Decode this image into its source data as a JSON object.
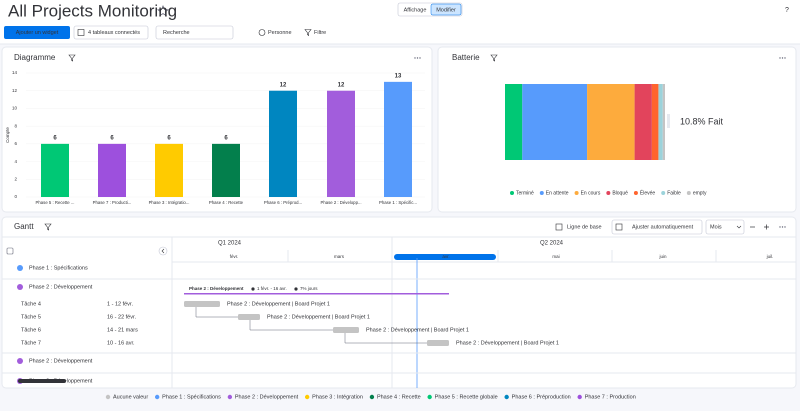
{
  "header": {
    "title": "All Projects Monitoring",
    "view_toggle": [
      "Affichage",
      "Modifier"
    ],
    "help": "?"
  },
  "toolbar": {
    "add_widget": "Ajouter un widget",
    "boards": "4 tableaux connectés",
    "search_placeholder": "Recherche",
    "person": "Personne",
    "filter": "Filtre"
  },
  "chart_widget": {
    "title": "Diagramme",
    "y_label": "Compte",
    "categories": [
      "Phase 5 : Recette ...",
      "Phase 7 : Producti...",
      "Phase 3 : Intégratio...",
      "Phase 4 : Recette",
      "Phase 6 : Préprod...",
      "Phase 2 : Développ...",
      "Phase 1 : Spécific..."
    ],
    "values": [
      6,
      6,
      6,
      6,
      12,
      12,
      13
    ],
    "colors": [
      "#00c875",
      "#9d50dd",
      "#ffcb00",
      "#037f4c",
      "#0086c0",
      "#a25ddc",
      "#579bfc"
    ],
    "ylim": [
      0,
      14
    ],
    "yticks": [
      0,
      2,
      4,
      6,
      8,
      10,
      12,
      14
    ]
  },
  "battery_widget": {
    "title": "Batterie",
    "done_label": "10.8% Fait",
    "segments": [
      {
        "name": "Terminé",
        "color": "#00c875",
        "value": 10.8
      },
      {
        "name": "En attente",
        "color": "#579bfc",
        "value": 40.5
      },
      {
        "name": "En cours",
        "color": "#fdab3d",
        "value": 29.7
      },
      {
        "name": "Bloqué",
        "color": "#e2445c",
        "value": 10.8
      },
      {
        "name": "Élevée",
        "color": "#ff642e",
        "value": 4.1
      },
      {
        "name": "Faible",
        "color": "#9cd3db",
        "value": 2.7
      },
      {
        "name": "empty",
        "color": "#c4c4c4",
        "value": 1.4
      }
    ]
  },
  "gantt": {
    "title": "Gantt",
    "baseline": "Ligne de base",
    "auto_fit": "Ajuster automatiquement",
    "scale": "Mois",
    "quarters": [
      "Q1 2024",
      "Q2 2024"
    ],
    "months": [
      "févr.",
      "mars",
      "avr.",
      "mai",
      "juin",
      "juil."
    ],
    "groups": [
      {
        "label": "Phase 1 : Spécifications",
        "color": "#579bfc"
      },
      {
        "label": "Phase 2 : Développement",
        "color": "#a25ddc"
      },
      {
        "label": "Phase 2 : Développement",
        "color": "#a25ddc"
      },
      {
        "label": "Phase 2 : Développement",
        "color": "#a25ddc"
      }
    ],
    "summary": {
      "label": "Phase 2 : Développement",
      "dates": "1 févr. - 16 avr.",
      "progress": "7% jours"
    },
    "tasks": [
      {
        "label": "Tâche 4",
        "dates": "1 - 12 févr.",
        "bar": "Phase 2 : Développement | Board Projet 1"
      },
      {
        "label": "Tâche 5",
        "dates": "16 - 22 févr.",
        "bar": "Phase 2 : Développement | Board Projet 1"
      },
      {
        "label": "Tâche 6",
        "dates": "14 - 21 mars",
        "bar": "Phase 2 : Développement | Board Projet 1"
      },
      {
        "label": "Tâche 7",
        "dates": "10 - 16 avr.",
        "bar": "Phase 2 : Développement | Board Projet 1"
      }
    ]
  },
  "legend": [
    {
      "name": "Aucune valeur",
      "color": "#c4c4c4"
    },
    {
      "name": "Phase 1 : Spécifications",
      "color": "#579bfc"
    },
    {
      "name": "Phase 2 : Développement",
      "color": "#a25ddc"
    },
    {
      "name": "Phase 3 : Intégration",
      "color": "#ffcb00"
    },
    {
      "name": "Phase 4 : Recette",
      "color": "#037f4c"
    },
    {
      "name": "Phase 5 : Recette globale",
      "color": "#00c875"
    },
    {
      "name": "Phase 6 : Préproduction",
      "color": "#0086c0"
    },
    {
      "name": "Phase 7 : Production",
      "color": "#9d50dd"
    }
  ]
}
